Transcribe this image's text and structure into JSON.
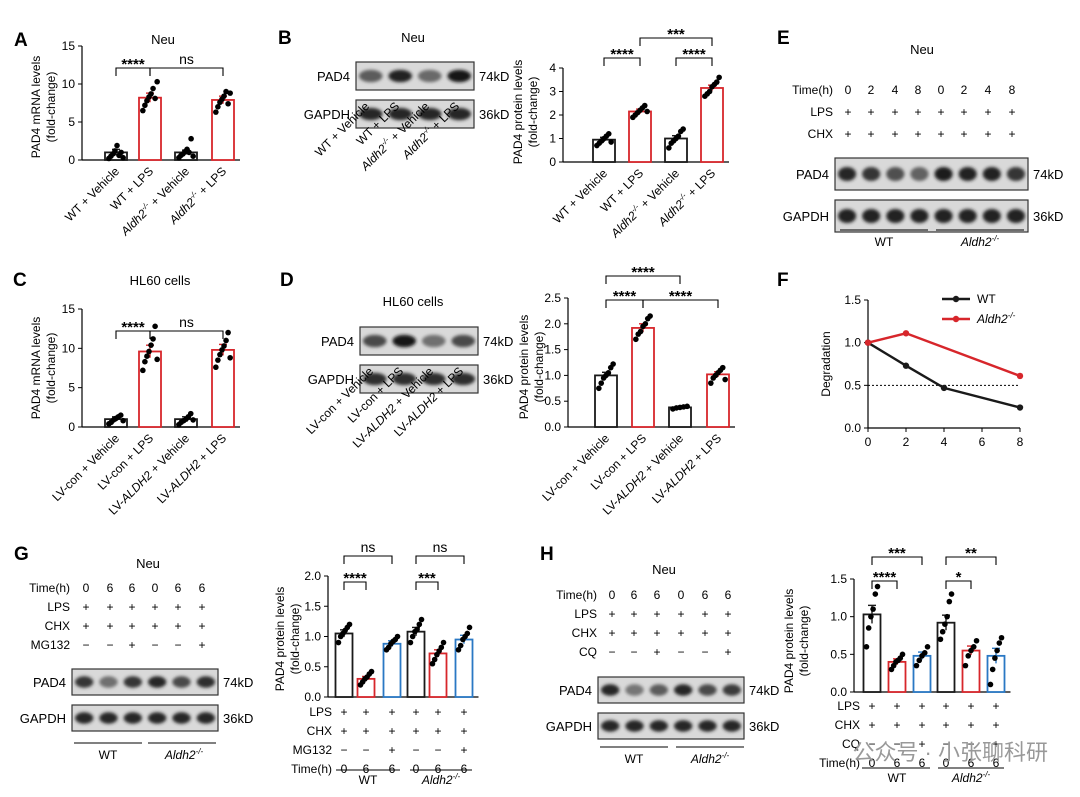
{
  "panels": {
    "A": {
      "letter": "A",
      "title": "Neu",
      "ylabel": [
        "PAD4 mRNA levels",
        "(fold-change)"
      ]
    },
    "B": {
      "letter": "B",
      "title": "Neu",
      "ylabel": [
        "PAD4 protein levels",
        "(fold-change)"
      ]
    },
    "C": {
      "letter": "C",
      "title": "HL60 cells",
      "ylabel": [
        "PAD4 mRNA levels",
        "(fold-change)"
      ]
    },
    "D": {
      "letter": "D",
      "title": "HL60 cells",
      "ylabel": [
        "PAD4 protein levels",
        "(fold-change)"
      ]
    },
    "E": {
      "letter": "E",
      "title": "Neu"
    },
    "F": {
      "letter": "F"
    },
    "G": {
      "letter": "G",
      "title": "Neu",
      "ylabel": [
        "PAD4 protein levels",
        "(fold-change)"
      ]
    },
    "H": {
      "letter": "H",
      "title": "Neu",
      "ylabel": [
        "PAD4 protein levels",
        "(fold-change)"
      ]
    }
  },
  "blot": {
    "pad4": "PAD4",
    "gapdh": "GAPDH",
    "kd74": "74kD",
    "kd36": "36kD"
  },
  "group_labels": {
    "wt": "WT",
    "aldh2": "Aldh2",
    "ko_sup": "-/-"
  },
  "cond_labels": {
    "AB": [
      "WT + Vehicle",
      "WT + LPS",
      "Aldh2-/- + Vehicle",
      "Aldh2-/- + LPS"
    ],
    "CD": [
      "LV-con + Vehicle",
      "LV-con + LPS",
      "LV-ALDH2 + Vehicle",
      "LV-ALDH2 + LPS"
    ]
  },
  "E": {
    "rows": [
      {
        "name": "Time(h)",
        "vals": [
          "0",
          "2",
          "4",
          "8",
          "0",
          "2",
          "4",
          "8"
        ]
      },
      {
        "name": "LPS",
        "vals": [
          "+",
          "+",
          "+",
          "+",
          "+",
          "+",
          "+",
          "+"
        ]
      },
      {
        "name": "CHX",
        "vals": [
          "+",
          "+",
          "+",
          "+",
          "+",
          "+",
          "+",
          "+"
        ]
      }
    ]
  },
  "G": {
    "rows": [
      {
        "name": "Time(h)",
        "vals": [
          "0",
          "6",
          "6",
          "0",
          "6",
          "6"
        ]
      },
      {
        "name": "LPS",
        "vals": [
          "+",
          "+",
          "+",
          "+",
          "+",
          "+"
        ]
      },
      {
        "name": "CHX",
        "vals": [
          "+",
          "+",
          "+",
          "+",
          "+",
          "+"
        ]
      },
      {
        "name": "MG132",
        "vals": [
          "−",
          "−",
          "+",
          "−",
          "−",
          "+"
        ]
      }
    ],
    "chart_rows": [
      {
        "name": "LPS",
        "vals": [
          "+",
          "+",
          "+",
          "+",
          "+",
          "+"
        ]
      },
      {
        "name": "CHX",
        "vals": [
          "+",
          "+",
          "+",
          "+",
          "+",
          "+"
        ]
      },
      {
        "name": "MG132",
        "vals": [
          "−",
          "−",
          "+",
          "−",
          "−",
          "+"
        ]
      },
      {
        "name": "Time(h)",
        "vals": [
          "0",
          "6",
          "6",
          "0",
          "6",
          "6"
        ]
      }
    ]
  },
  "H": {
    "rows": [
      {
        "name": "Time(h)",
        "vals": [
          "0",
          "6",
          "6",
          "0",
          "6",
          "6"
        ]
      },
      {
        "name": "LPS",
        "vals": [
          "+",
          "+",
          "+",
          "+",
          "+",
          "+"
        ]
      },
      {
        "name": "CHX",
        "vals": [
          "+",
          "+",
          "+",
          "+",
          "+",
          "+"
        ]
      },
      {
        "name": "CQ",
        "vals": [
          "−",
          "−",
          "+",
          "−",
          "−",
          "+"
        ]
      }
    ],
    "chart_rows": [
      {
        "name": "LPS",
        "vals": [
          "+",
          "+",
          "+",
          "+",
          "+",
          "+"
        ]
      },
      {
        "name": "CHX",
        "vals": [
          "+",
          "+",
          "+",
          "+",
          "+",
          "+"
        ]
      },
      {
        "name": "CQ",
        "vals": [
          "−",
          "−",
          "+",
          "−",
          "−",
          "+"
        ]
      },
      {
        "name": "Time(h)",
        "vals": [
          "0",
          "6",
          "6",
          "0",
          "6",
          "6"
        ]
      }
    ]
  },
  "watermark": "公众号 · 小张聊科研",
  "colors": {
    "black": "#1a1a1a",
    "red": "#d7262b",
    "blue": "#2a78c4",
    "grey": "#888888"
  },
  "chart_data": [
    {
      "id": "A",
      "type": "bar",
      "ylim": [
        0,
        15
      ],
      "yticks": [
        0,
        5,
        10,
        15
      ],
      "values": [
        1.0,
        8.2,
        1.0,
        7.9
      ],
      "errors": [
        0.4,
        0.6,
        0.3,
        0.5
      ],
      "colors": [
        "black",
        "red",
        "black",
        "red"
      ],
      "points": [
        [
          0.2,
          0.5,
          0.8,
          1.2,
          1.9,
          0.6,
          1.0,
          0.3
        ],
        [
          6.5,
          7.2,
          7.8,
          8.3,
          8.7,
          9.4,
          8.1,
          10.3
        ],
        [
          0.3,
          0.6,
          0.8,
          1.1,
          1.4,
          1.0,
          2.8,
          0.5
        ],
        [
          6.3,
          7.0,
          7.6,
          8.0,
          8.4,
          9.0,
          7.4,
          8.8
        ]
      ],
      "sig": [
        {
          "a": 0,
          "b": 1,
          "text": "****",
          "level": 0
        },
        {
          "a": 1,
          "b": 3,
          "text": "ns",
          "level": 0
        }
      ]
    },
    {
      "id": "B",
      "type": "bar",
      "ylim": [
        0,
        4
      ],
      "yticks": [
        0,
        1,
        2,
        3,
        4
      ],
      "values": [
        0.95,
        2.15,
        1.0,
        3.15
      ],
      "errors": [
        0.1,
        0.1,
        0.12,
        0.12
      ],
      "colors": [
        "black",
        "red",
        "black",
        "red"
      ],
      "points": [
        [
          0.7,
          0.8,
          0.9,
          1.0,
          1.1,
          1.2,
          0.85
        ],
        [
          1.9,
          2.0,
          2.1,
          2.2,
          2.3,
          2.4,
          2.15
        ],
        [
          0.6,
          0.8,
          0.9,
          1.0,
          1.1,
          1.3,
          1.4
        ],
        [
          2.8,
          2.9,
          3.0,
          3.2,
          3.3,
          3.4,
          3.6
        ]
      ],
      "sig": [
        {
          "a": 0,
          "b": 1,
          "text": "****",
          "level": 0
        },
        {
          "a": 2,
          "b": 3,
          "text": "****",
          "level": 0
        },
        {
          "a": 1,
          "b": 3,
          "text": "***",
          "level": 1
        }
      ]
    },
    {
      "id": "C",
      "type": "bar",
      "ylim": [
        0,
        15
      ],
      "yticks": [
        0,
        5,
        10,
        15
      ],
      "values": [
        1.0,
        9.6,
        1.0,
        9.8
      ],
      "errors": [
        0.3,
        0.8,
        0.3,
        0.7
      ],
      "colors": [
        "black",
        "red",
        "black",
        "red"
      ],
      "points": [
        [
          0.4,
          0.6,
          0.9,
          1.1,
          1.3,
          1.5,
          0.8
        ],
        [
          7.2,
          8.3,
          9.0,
          9.6,
          10.4,
          11.2,
          12.8,
          8.6
        ],
        [
          0.3,
          0.6,
          0.8,
          1.0,
          1.3,
          1.7,
          0.9
        ],
        [
          7.6,
          8.5,
          9.2,
          9.8,
          10.3,
          11.0,
          12.0,
          8.8
        ]
      ],
      "sig": [
        {
          "a": 0,
          "b": 1,
          "text": "****",
          "level": 0
        },
        {
          "a": 1,
          "b": 3,
          "text": "ns",
          "level": 0
        }
      ]
    },
    {
      "id": "D",
      "type": "bar",
      "ylim": [
        0,
        2.5
      ],
      "yticks": [
        0.0,
        0.5,
        1.0,
        1.5,
        2.0,
        2.5
      ],
      "values": [
        1.0,
        1.92,
        0.38,
        1.02
      ],
      "errors": [
        0.06,
        0.08,
        0.02,
        0.05
      ],
      "colors": [
        "black",
        "red",
        "black",
        "red"
      ],
      "points": [
        [
          0.75,
          0.85,
          0.95,
          1.0,
          1.05,
          1.15,
          1.22
        ],
        [
          1.7,
          1.8,
          1.85,
          1.95,
          2.0,
          2.1,
          2.15
        ],
        [
          0.35,
          0.37,
          0.38,
          0.39,
          0.4
        ],
        [
          0.85,
          0.95,
          1.0,
          1.05,
          1.1,
          1.15,
          0.92
        ]
      ],
      "sig": [
        {
          "a": 0,
          "b": 1,
          "text": "****",
          "level": 0
        },
        {
          "a": 1,
          "b": 3,
          "text": "****",
          "level": 0
        },
        {
          "a": 0,
          "b": 2,
          "text": "****",
          "level": 1
        }
      ]
    },
    {
      "id": "F",
      "type": "line",
      "ylabel": "Degradation",
      "xlim": [
        0,
        8
      ],
      "ylim": [
        0,
        1.5
      ],
      "xticks": [
        0,
        2,
        4,
        6,
        8
      ],
      "yticks": [
        0.0,
        0.5,
        1.0,
        1.5
      ],
      "reference_y": 0.5,
      "series": [
        {
          "name": "WT",
          "color": "black",
          "x": [
            0,
            2,
            4,
            8
          ],
          "y": [
            1.0,
            0.73,
            0.47,
            0.24
          ]
        },
        {
          "name": "Aldh2-/-",
          "color": "red",
          "x": [
            0,
            2,
            8
          ],
          "y": [
            1.0,
            1.11,
            0.61
          ]
        }
      ]
    },
    {
      "id": "G",
      "type": "bar",
      "ylim": [
        0,
        2.0
      ],
      "yticks": [
        0.0,
        0.5,
        1.0,
        1.5,
        2.0
      ],
      "values": [
        1.05,
        0.3,
        0.88,
        1.08,
        0.72,
        0.95
      ],
      "errors": [
        0.06,
        0.04,
        0.05,
        0.07,
        0.06,
        0.07
      ],
      "colors": [
        "black",
        "red",
        "blue",
        "black",
        "red",
        "blue"
      ],
      "points": [
        [
          0.9,
          1.0,
          1.05,
          1.1,
          1.15,
          1.2
        ],
        [
          0.2,
          0.25,
          0.3,
          0.33,
          0.38,
          0.42
        ],
        [
          0.78,
          0.82,
          0.88,
          0.92,
          0.95,
          1.0
        ],
        [
          0.9,
          1.0,
          1.08,
          1.12,
          1.2,
          1.28
        ],
        [
          0.55,
          0.62,
          0.7,
          0.76,
          0.82,
          0.9
        ],
        [
          0.78,
          0.85,
          0.95,
          1.0,
          1.05,
          1.15
        ]
      ],
      "sig": [
        {
          "a": 0,
          "b": 1,
          "text": "****",
          "level": 0
        },
        {
          "a": 0,
          "b": 2,
          "text": "ns",
          "level": 1
        },
        {
          "a": 3,
          "b": 4,
          "text": "***",
          "level": 0
        },
        {
          "a": 3,
          "b": 5,
          "text": "ns",
          "level": 1
        }
      ]
    },
    {
      "id": "H",
      "type": "bar",
      "ylim": [
        0,
        1.5
      ],
      "yticks": [
        0.0,
        0.5,
        1.0,
        1.5
      ],
      "values": [
        1.03,
        0.4,
        0.48,
        0.92,
        0.55,
        0.48
      ],
      "errors": [
        0.12,
        0.04,
        0.05,
        0.1,
        0.06,
        0.1
      ],
      "colors": [
        "black",
        "red",
        "blue",
        "black",
        "red",
        "blue"
      ],
      "points": [
        [
          0.6,
          0.85,
          1.0,
          1.1,
          1.3,
          1.4
        ],
        [
          0.3,
          0.35,
          0.4,
          0.42,
          0.45,
          0.5
        ],
        [
          0.35,
          0.42,
          0.48,
          0.52,
          0.6
        ],
        [
          0.7,
          0.8,
          0.9,
          1.0,
          1.2,
          1.3
        ],
        [
          0.35,
          0.48,
          0.55,
          0.6,
          0.68
        ],
        [
          0.1,
          0.3,
          0.45,
          0.55,
          0.65,
          0.72
        ]
      ],
      "sig": [
        {
          "a": 0,
          "b": 1,
          "text": "****",
          "level": 0
        },
        {
          "a": 0,
          "b": 2,
          "text": "***",
          "level": 1
        },
        {
          "a": 3,
          "b": 4,
          "text": "*",
          "level": 0
        },
        {
          "a": 3,
          "b": 5,
          "text": "**",
          "level": 1
        }
      ]
    }
  ]
}
